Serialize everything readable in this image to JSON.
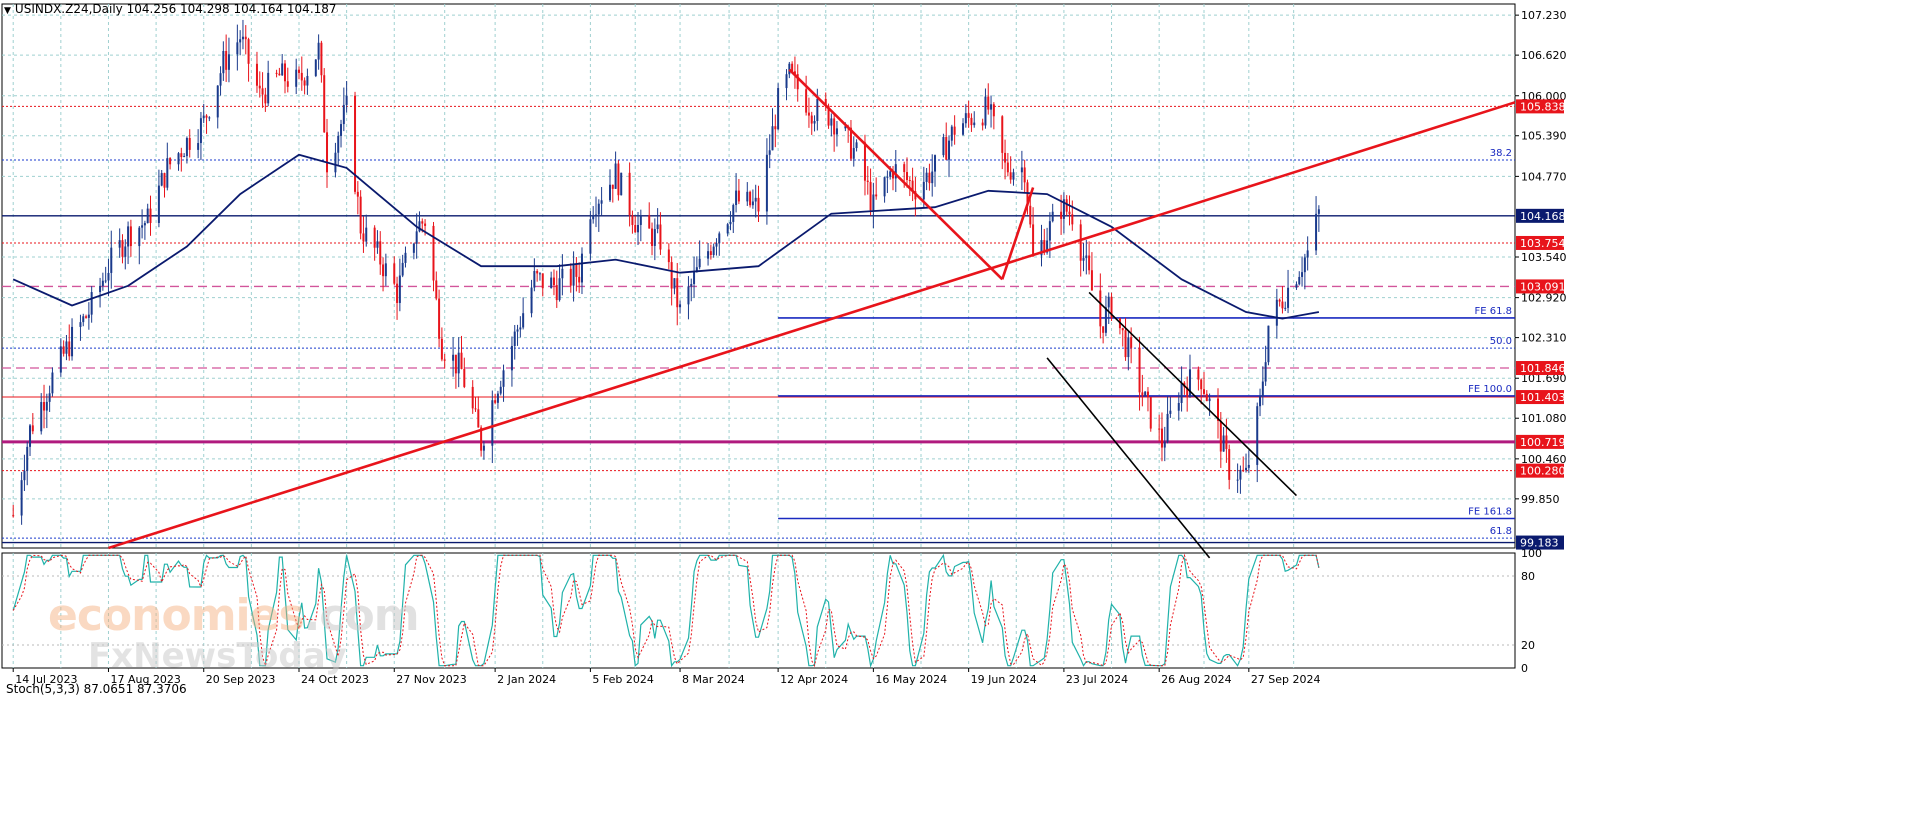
{
  "header": {
    "symbol_line": "USINDX.Z24,Daily  104.256 104.298 104.164 104.187"
  },
  "stoch_header": "Stoch(5,3,3) 87.0651 87.3706",
  "watermark": {
    "line1a": "economies",
    "line1b": ".com",
    "line2": "FxNewsToday"
  },
  "colors": {
    "up_candle": "#1a3a8c",
    "down_candle": "#e8141b",
    "ma": "#0a1a6e",
    "trendline": "#e8141b",
    "channel": "#000000",
    "stoch_main": "#20b2aa",
    "stoch_signal": "#e8141b",
    "grid": "#9fd0d0",
    "badge_red": "#e8141b",
    "badge_blue": "#0a1a6e"
  },
  "chart_data": {
    "type": "candlestick",
    "title": "USINDX.Z24,Daily",
    "ohlc_last": {
      "open": 104.256,
      "high": 104.298,
      "low": 104.164,
      "close": 104.187
    },
    "ylim": [
      99.1,
      107.4
    ],
    "y_ticks": [
      "107.230",
      "106.620",
      "106.000",
      "105.390",
      "104.770",
      "103.540",
      "102.920",
      "102.310",
      "101.690",
      "101.080",
      "100.460",
      "99.850"
    ],
    "x_ticks": [
      "14 Jul 2023",
      "17 Aug 2023",
      "20 Sep 2023",
      "24 Oct 2023",
      "27 Nov 2023",
      "2 Jan 2024",
      "5 Feb 2024",
      "8 Mar 2024",
      "12 Apr 2024",
      "16 May 2024",
      "19 Jun 2024",
      "23 Jul 2024",
      "26 Aug 2024",
      "27 Sep 2024"
    ],
    "price_path": [
      [
        "2023-07-14",
        99.6
      ],
      [
        "2023-07-20",
        100.9
      ],
      [
        "2023-07-28",
        101.7
      ],
      [
        "2023-08-04",
        102.3
      ],
      [
        "2023-08-10",
        102.7
      ],
      [
        "2023-08-17",
        103.4
      ],
      [
        "2023-08-24",
        103.9
      ],
      [
        "2023-08-31",
        104.1
      ],
      [
        "2023-09-07",
        104.9
      ],
      [
        "2023-09-14",
        105.3
      ],
      [
        "2023-09-20",
        105.6
      ],
      [
        "2023-09-27",
        106.5
      ],
      [
        "2023-10-03",
        106.9
      ],
      [
        "2023-10-10",
        106.0
      ],
      [
        "2023-10-17",
        106.3
      ],
      [
        "2023-10-24",
        106.2
      ],
      [
        "2023-10-31",
        106.7
      ],
      [
        "2023-11-03",
        105.0
      ],
      [
        "2023-11-10",
        105.8
      ],
      [
        "2023-11-15",
        104.0
      ],
      [
        "2023-11-22",
        103.5
      ],
      [
        "2023-11-28",
        103.0
      ],
      [
        "2023-12-05",
        104.0
      ],
      [
        "2023-12-08",
        104.1
      ],
      [
        "2023-12-14",
        102.2
      ],
      [
        "2023-12-21",
        101.8
      ],
      [
        "2023-12-28",
        100.7
      ],
      [
        "2024-01-02",
        101.5
      ],
      [
        "2024-01-08",
        102.2
      ],
      [
        "2024-01-16",
        103.2
      ],
      [
        "2024-01-24",
        103.1
      ],
      [
        "2024-02-01",
        103.3
      ],
      [
        "2024-02-05",
        104.3
      ],
      [
        "2024-02-14",
        104.8
      ],
      [
        "2024-02-22",
        104.0
      ],
      [
        "2024-03-01",
        103.8
      ],
      [
        "2024-03-08",
        102.7
      ],
      [
        "2024-03-14",
        103.3
      ],
      [
        "2024-03-21",
        103.9
      ],
      [
        "2024-03-28",
        104.4
      ],
      [
        "2024-04-05",
        104.3
      ],
      [
        "2024-04-12",
        105.9
      ],
      [
        "2024-04-16",
        106.3
      ],
      [
        "2024-04-24",
        105.8
      ],
      [
        "2024-05-01",
        105.7
      ],
      [
        "2024-05-10",
        105.1
      ],
      [
        "2024-05-16",
        104.3
      ],
      [
        "2024-05-23",
        104.9
      ],
      [
        "2024-05-31",
        104.6
      ],
      [
        "2024-06-07",
        104.9
      ],
      [
        "2024-06-14",
        105.5
      ],
      [
        "2024-06-21",
        105.7
      ],
      [
        "2024-06-26",
        105.8
      ],
      [
        "2024-07-02",
        104.9
      ],
      [
        "2024-07-09",
        104.9
      ],
      [
        "2024-07-12",
        103.5
      ],
      [
        "2024-07-17",
        103.9
      ],
      [
        "2024-07-22",
        104.3
      ],
      [
        "2024-07-26",
        104.2
      ],
      [
        "2024-08-01",
        103.2
      ],
      [
        "2024-08-05",
        102.5
      ],
      [
        "2024-08-09",
        102.8
      ],
      [
        "2024-08-15",
        102.1
      ],
      [
        "2024-08-22",
        101.2
      ],
      [
        "2024-08-27",
        100.7
      ],
      [
        "2024-09-03",
        101.6
      ],
      [
        "2024-09-10",
        101.7
      ],
      [
        "2024-09-16",
        100.9
      ],
      [
        "2024-09-20",
        100.3
      ],
      [
        "2024-09-26",
        100.2
      ],
      [
        "2024-10-01",
        101.3
      ],
      [
        "2024-10-04",
        102.5
      ],
      [
        "2024-10-09",
        102.9
      ],
      [
        "2024-10-14",
        103.3
      ],
      [
        "2024-10-18",
        103.6
      ],
      [
        "2024-10-22",
        104.2
      ]
    ],
    "moving_average_path": [
      [
        "2023-07-14",
        103.2
      ],
      [
        "2023-08-04",
        102.8
      ],
      [
        "2023-08-24",
        103.1
      ],
      [
        "2023-09-14",
        103.7
      ],
      [
        "2023-10-03",
        104.5
      ],
      [
        "2023-10-24",
        105.1
      ],
      [
        "2023-11-10",
        104.9
      ],
      [
        "2023-12-05",
        104.0
      ],
      [
        "2023-12-28",
        103.4
      ],
      [
        "2024-01-24",
        103.4
      ],
      [
        "2024-02-14",
        103.5
      ],
      [
        "2024-03-08",
        103.3
      ],
      [
        "2024-04-05",
        103.4
      ],
      [
        "2024-05-01",
        104.2
      ],
      [
        "2024-06-07",
        104.3
      ],
      [
        "2024-06-26",
        104.55
      ],
      [
        "2024-07-17",
        104.5
      ],
      [
        "2024-08-09",
        104.0
      ],
      [
        "2024-09-03",
        103.2
      ],
      [
        "2024-09-26",
        102.7
      ],
      [
        "2024-10-09",
        102.6
      ],
      [
        "2024-10-22",
        102.7
      ]
    ],
    "horizontal_levels": [
      {
        "value": 105.838,
        "label": "105.838",
        "style": "red-dotted",
        "badge": "red"
      },
      {
        "value": 105.02,
        "label": "38.2",
        "style": "blue-dotted",
        "badge": ""
      },
      {
        "value": 104.168,
        "label": "104.168",
        "style": "navy-solid",
        "badge": "blue"
      },
      {
        "value": 103.754,
        "label": "103.754",
        "style": "red-dotted",
        "badge": "red"
      },
      {
        "value": 103.091,
        "label": "103.091",
        "style": "pink-dashed",
        "badge": "red"
      },
      {
        "value": 102.61,
        "label": "FE 61.8",
        "style": "blue-solid",
        "badge": "",
        "start": "2024-04-12"
      },
      {
        "value": 102.15,
        "label": "50.0",
        "style": "blue-dotted",
        "badge": ""
      },
      {
        "value": 101.846,
        "label": "101.846",
        "style": "pink-dashed",
        "badge": "red"
      },
      {
        "value": 101.403,
        "label": "101.403",
        "style": "red-solid",
        "badge": "red"
      },
      {
        "value": 101.42,
        "label": "FE 100.0",
        "style": "blue-solid",
        "badge": "",
        "start": "2024-04-12"
      },
      {
        "value": 100.719,
        "label": "100.719",
        "style": "magenta-thick",
        "badge": "red"
      },
      {
        "value": 100.28,
        "label": "100.280",
        "style": "red-dotted",
        "badge": "red"
      },
      {
        "value": 99.55,
        "label": "FE 161.8",
        "style": "blue-solid",
        "badge": "",
        "start": "2024-04-12"
      },
      {
        "value": 99.25,
        "label": "61.8",
        "style": "blue-dotted",
        "badge": ""
      },
      {
        "value": 99.183,
        "label": "99.183",
        "style": "navy-solid",
        "badge": "blue"
      }
    ],
    "trendlines": [
      {
        "name": "rising-support",
        "from": [
          "2023-08-17",
          99.1
        ],
        "to": [
          "2024-12-31",
          105.9
        ],
        "color": "red"
      },
      {
        "name": "abc-leg-1",
        "from": [
          "2024-04-16",
          106.4
        ],
        "to": [
          "2024-07-01",
          103.2
        ],
        "color": "red"
      },
      {
        "name": "abc-leg-2",
        "from": [
          "2024-07-01",
          103.2
        ],
        "to": [
          "2024-07-12",
          104.6
        ],
        "color": "red"
      },
      {
        "name": "channel-upper",
        "from": [
          "2024-08-01",
          103.0
        ],
        "to": [
          "2024-10-14",
          99.9
        ],
        "color": "black"
      },
      {
        "name": "channel-lower",
        "from": [
          "2024-07-17",
          102.0
        ],
        "to": [
          "2024-09-13",
          98.95
        ],
        "color": "black"
      }
    ],
    "stochastic": {
      "label": "Stoch(5,3,3) 87.0651 87.3706",
      "main": 87.0651,
      "signal": 87.3706,
      "ylim": [
        0,
        100
      ],
      "y_ticks": [
        "100",
        "80",
        "20",
        "0"
      ]
    }
  }
}
